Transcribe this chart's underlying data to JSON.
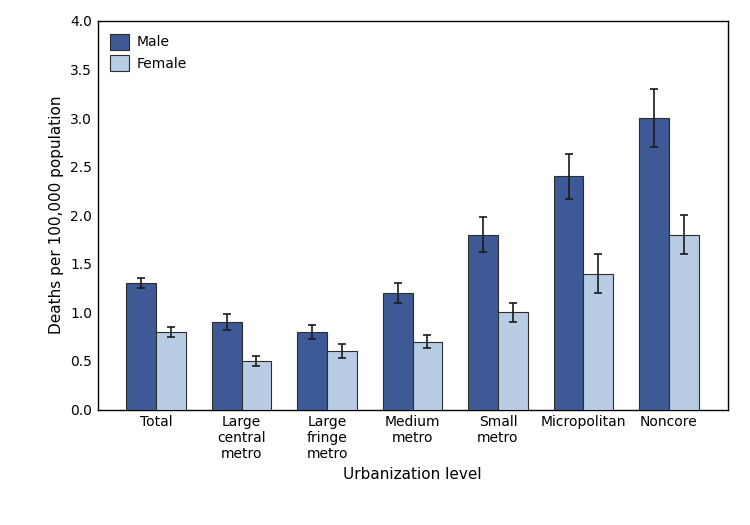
{
  "categories": [
    "Total",
    "Large\ncentral\nmetro",
    "Large\nfringe\nmetro",
    "Medium\nmetro",
    "Small\nmetro",
    "Micropolitan",
    "Noncore"
  ],
  "male_values": [
    1.3,
    0.9,
    0.8,
    1.2,
    1.8,
    2.4,
    3.0
  ],
  "female_values": [
    0.8,
    0.5,
    0.6,
    0.7,
    1.0,
    1.4,
    1.8
  ],
  "male_errors": [
    0.05,
    0.08,
    0.07,
    0.1,
    0.18,
    0.23,
    0.3
  ],
  "female_errors": [
    0.05,
    0.05,
    0.07,
    0.07,
    0.1,
    0.2,
    0.2
  ],
  "male_color": "#3d5a96",
  "female_color": "#b8cce4",
  "bar_edge_color": "#2d2d2d",
  "error_color": "#1a1a1a",
  "ylabel": "Deaths per 100,000 population",
  "xlabel": "Urbanization level",
  "ylim": [
    0.0,
    4.0
  ],
  "yticks": [
    0.0,
    0.5,
    1.0,
    1.5,
    2.0,
    2.5,
    3.0,
    3.5,
    4.0
  ],
  "bar_width": 0.35,
  "legend_labels": [
    "Male",
    "Female"
  ],
  "axis_fontsize": 11,
  "tick_fontsize": 10,
  "legend_fontsize": 10
}
